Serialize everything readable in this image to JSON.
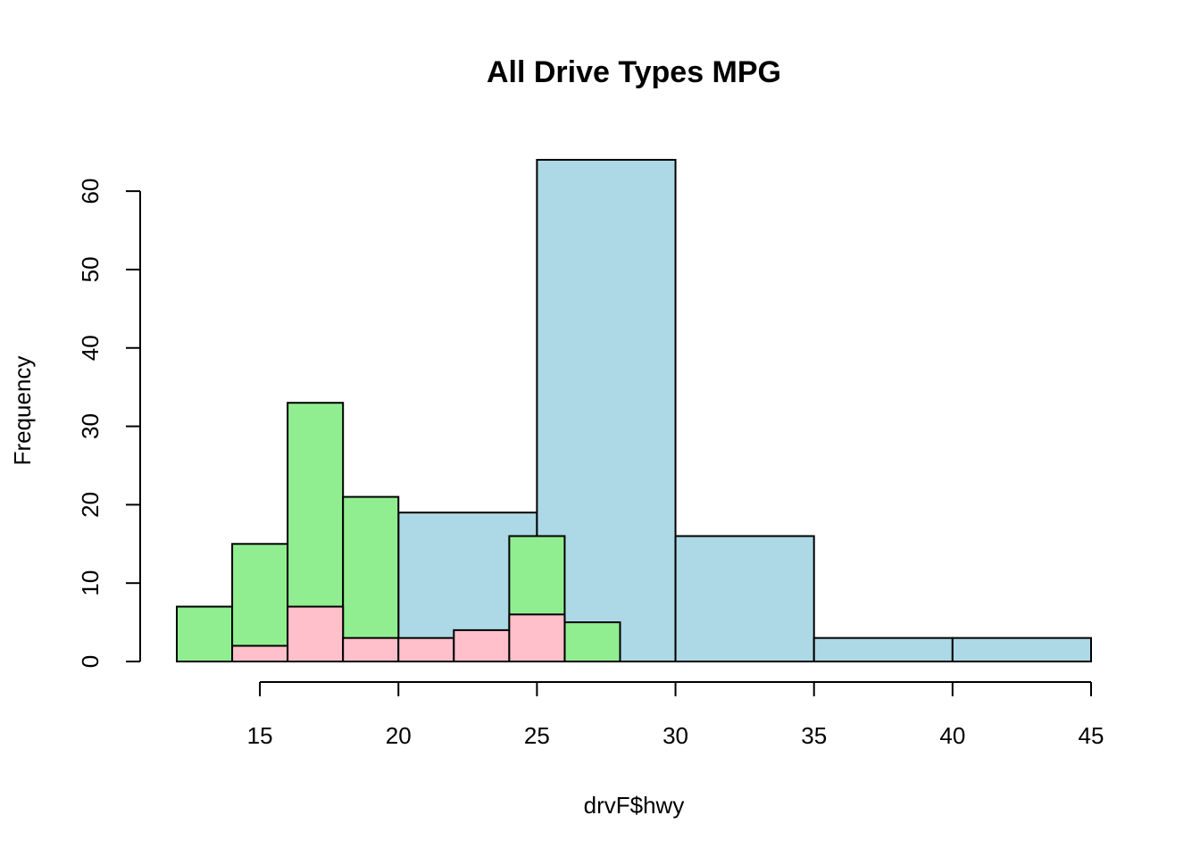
{
  "chart_data": {
    "type": "bar",
    "title": "All Drive Types MPG",
    "xlabel": "drvF$hwy",
    "ylabel": "Frequency",
    "xlim": [
      12,
      45
    ],
    "ylim": [
      0,
      64
    ],
    "x_ticks": [
      15,
      20,
      25,
      30,
      35,
      40,
      45
    ],
    "y_ticks": [
      0,
      10,
      20,
      30,
      40,
      50,
      60
    ],
    "grid": false,
    "series": [
      {
        "color": "#ADD8E6",
        "bins": [
          {
            "start": 20,
            "end": 25,
            "count": 19
          },
          {
            "start": 25,
            "end": 30,
            "count": 64
          },
          {
            "start": 30,
            "end": 35,
            "count": 16
          },
          {
            "start": 35,
            "end": 40,
            "count": 3
          },
          {
            "start": 40,
            "end": 45,
            "count": 3
          }
        ]
      },
      {
        "color": "#90EE90",
        "bins": [
          {
            "start": 12,
            "end": 14,
            "count": 7
          },
          {
            "start": 14,
            "end": 16,
            "count": 15
          },
          {
            "start": 16,
            "end": 18,
            "count": 33
          },
          {
            "start": 18,
            "end": 20,
            "count": 21
          },
          {
            "start": 20,
            "end": 22,
            "count": 0
          },
          {
            "start": 22,
            "end": 24,
            "count": 0
          },
          {
            "start": 24,
            "end": 26,
            "count": 16
          },
          {
            "start": 26,
            "end": 28,
            "count": 5
          }
        ]
      },
      {
        "color": "#FFC0CB",
        "bins": [
          {
            "start": 14,
            "end": 16,
            "count": 2
          },
          {
            "start": 16,
            "end": 18,
            "count": 7
          },
          {
            "start": 18,
            "end": 20,
            "count": 3
          },
          {
            "start": 20,
            "end": 22,
            "count": 3
          },
          {
            "start": 22,
            "end": 24,
            "count": 4
          },
          {
            "start": 24,
            "end": 26,
            "count": 6
          }
        ]
      }
    ]
  }
}
